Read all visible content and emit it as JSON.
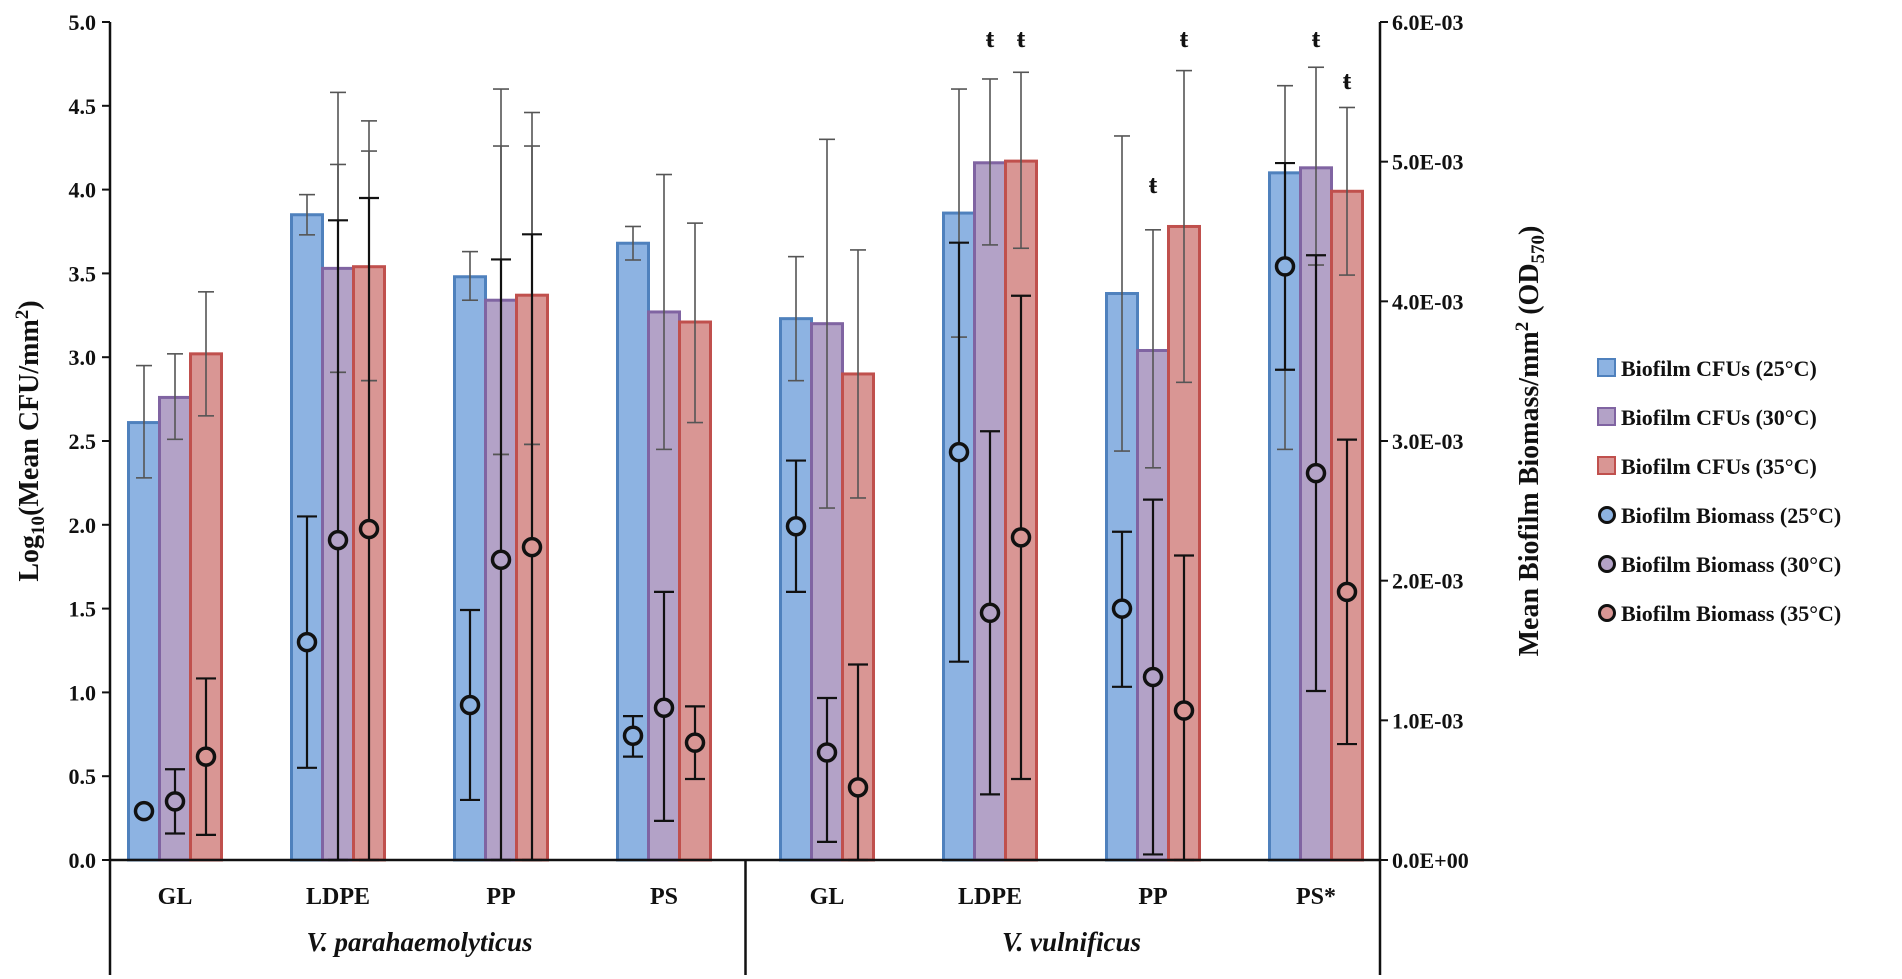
{
  "chart_data": {
    "type": "bar",
    "title": "",
    "ylabel_left": "Log10(Mean CFU/mm2)",
    "ylabel_left_parts": {
      "a": "Log",
      "sub": "10",
      "b": "(Mean CFU/mm",
      "sup": "2",
      "c": ")"
    },
    "ylabel_right": "Mean Biofilm Biomass/mm2 (OD570)",
    "ylabel_right_parts": {
      "a": "Mean Biofilm Biomass/mm",
      "sup": "2",
      "b": " (OD",
      "sub": "570",
      "c": ")"
    },
    "ylim_left": [
      0,
      5
    ],
    "ylim_right": [
      0,
      0.006
    ],
    "left_ticks": [
      "0.0",
      "0.5",
      "1.0",
      "1.5",
      "2.0",
      "2.5",
      "3.0",
      "3.5",
      "4.0",
      "4.5",
      "5.0"
    ],
    "right_ticks": [
      "0.0E+00",
      "1.0E-03",
      "2.0E-03",
      "3.0E-03",
      "4.0E-03",
      "5.0E-03",
      "6.0E-03"
    ],
    "groups": [
      {
        "name": "V. parahaemolyticus",
        "categories": [
          "GL",
          "LDPE",
          "PP",
          "PS"
        ]
      },
      {
        "name": "V. vulnificus",
        "categories": [
          "GL",
          "LDPE",
          "PP",
          "PS*"
        ]
      }
    ],
    "categories": [
      "GL",
      "LDPE",
      "PP",
      "PS",
      "GL",
      "LDPE",
      "PP",
      "PS*"
    ],
    "bar_series": [
      {
        "name": "Biofilm CFUs (25°C)",
        "color": "#8db3e2",
        "edge": "#4f81bd",
        "values": [
          2.61,
          3.85,
          3.48,
          3.68,
          3.23,
          3.86,
          3.38,
          4.1
        ],
        "err_low": [
          2.28,
          3.73,
          3.34,
          3.58,
          2.86,
          3.12,
          2.44,
          2.45
        ],
        "err_high": [
          2.95,
          3.97,
          3.63,
          3.78,
          3.6,
          4.6,
          4.32,
          4.62
        ]
      },
      {
        "name": "Biofilm CFUs (30°C)",
        "color": "#b3a2c7",
        "edge": "#8064a2",
        "values": [
          2.76,
          3.53,
          3.34,
          3.27,
          3.2,
          4.16,
          3.04,
          4.13
        ],
        "err_low": [
          2.51,
          2.91,
          2.42,
          2.45,
          2.1,
          3.67,
          2.34,
          3.55
        ],
        "err_high": [
          3.02,
          4.15,
          4.26,
          4.09,
          4.3,
          4.66,
          3.76,
          4.73
        ]
      },
      {
        "name": "Biofilm CFUs (35°C)",
        "color": "#d99694",
        "edge": "#c0504d",
        "values": [
          3.02,
          3.54,
          3.37,
          3.21,
          2.9,
          4.17,
          3.78,
          3.99
        ],
        "err_low": [
          2.65,
          2.86,
          2.48,
          2.61,
          2.16,
          3.65,
          2.85,
          3.49
        ],
        "err_high": [
          3.39,
          4.23,
          4.26,
          3.8,
          3.64,
          4.7,
          4.71,
          4.49
        ]
      }
    ],
    "bar_outer_error": {
      "LDPE_vp_30": [
        4.58,
        2.91
      ],
      "LDPE_vp_35": [
        4.41,
        2.86
      ],
      "PP_vp_30": [
        4.6,
        2.42
      ],
      "PP_vp_35": [
        4.46,
        2.48
      ]
    },
    "point_series": [
      {
        "name": "Biofilm Biomass (25°C)",
        "color": "#8db3e2",
        "values": [
          0.00035,
          0.00156,
          0.00111,
          0.00089,
          0.00239,
          0.00292,
          0.0018,
          0.00425
        ],
        "err_low": [
          0.00035,
          0.00066,
          0.00043,
          0.00074,
          0.00192,
          0.00142,
          0.00124,
          0.00351
        ],
        "err_high": [
          0.00035,
          0.00246,
          0.00179,
          0.00103,
          0.00286,
          0.00442,
          0.00235,
          0.00499
        ]
      },
      {
        "name": "Biofilm Biomass (30°C)",
        "color": "#b3a2c7",
        "values": [
          0.00042,
          0.00229,
          0.00215,
          0.00109,
          0.00077,
          0.00177,
          0.00131,
          0.00277
        ],
        "err_low": [
          0.00019,
          0.0,
          0.0,
          0.00028,
          0.00013,
          0.00047,
          4e-05,
          0.00121
        ],
        "err_high": [
          0.00065,
          0.00458,
          0.0043,
          0.00192,
          0.00116,
          0.00307,
          0.00258,
          0.00433
        ]
      },
      {
        "name": "Biofilm Biomass (35°C)",
        "color": "#d99694",
        "values": [
          0.00074,
          0.00237,
          0.00224,
          0.00084,
          0.00052,
          0.00231,
          0.00107,
          0.00192
        ],
        "err_low": [
          0.00018,
          0.0,
          0.0,
          0.00058,
          0.0,
          0.00058,
          0.0,
          0.00083
        ],
        "err_high": [
          0.0013,
          0.00474,
          0.00448,
          0.0011,
          0.0014,
          0.00404,
          0.00218,
          0.00301
        ]
      }
    ],
    "significance_marker": "ŧ",
    "significance": [
      {
        "category_index": 5,
        "series": 1,
        "level": 4.85
      },
      {
        "category_index": 5,
        "series": 2,
        "level": 4.85
      },
      {
        "category_index": 6,
        "series": 1,
        "level": 3.98
      },
      {
        "category_index": 6,
        "series": 2,
        "level": 4.85
      },
      {
        "category_index": 7,
        "series": 1,
        "level": 4.85
      },
      {
        "category_index": 7,
        "series": 2,
        "level": 4.6
      }
    ],
    "legend_position": "right"
  }
}
